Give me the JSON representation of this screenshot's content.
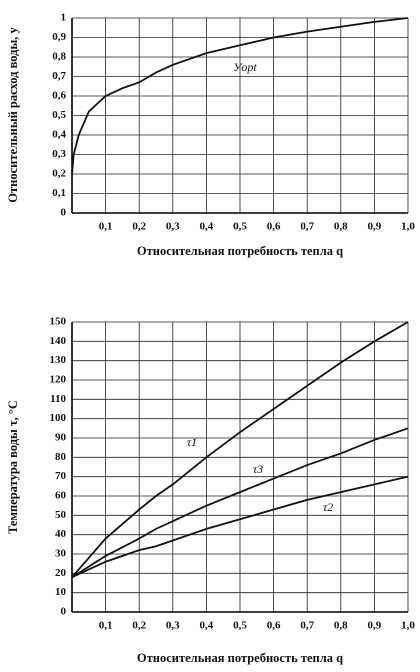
{
  "chart_data": [
    {
      "type": "line",
      "x_label": "Относительная потребность тепла q",
      "y_label": "Относительный расход воды, у",
      "x": [
        0,
        0.005,
        0.02,
        0.05,
        0.1,
        0.15,
        0.2,
        0.25,
        0.3,
        0.4,
        0.5,
        0.6,
        0.7,
        0.8,
        0.9,
        1.0
      ],
      "series": [
        {
          "name": "Уopt",
          "color": "#111111",
          "values": [
            0.2,
            0.3,
            0.4,
            0.52,
            0.6,
            0.64,
            0.67,
            0.72,
            0.76,
            0.82,
            0.86,
            0.9,
            0.93,
            0.955,
            0.98,
            1.0
          ]
        }
      ],
      "xlim": [
        0,
        1
      ],
      "ylim": [
        0,
        1
      ],
      "xticks": [
        {
          "value": 0.1,
          "label": "0,1"
        },
        {
          "value": 0.2,
          "label": "0,2"
        },
        {
          "value": 0.3,
          "label": "0,3"
        },
        {
          "value": 0.4,
          "label": "0,4"
        },
        {
          "value": 0.5,
          "label": "0,5"
        },
        {
          "value": 0.6,
          "label": "0,6"
        },
        {
          "value": 0.7,
          "label": "0,7"
        },
        {
          "value": 0.8,
          "label": "0,8"
        },
        {
          "value": 0.9,
          "label": "0,9"
        },
        {
          "value": 1.0,
          "label": "1,0"
        }
      ],
      "yticks": [
        0,
        {
          "value": 0.1,
          "label": "0,1"
        },
        {
          "value": 0.2,
          "label": "0,2"
        },
        {
          "value": 0.3,
          "label": "0,3"
        },
        {
          "value": 0.4,
          "label": "0,4"
        },
        {
          "value": 0.5,
          "label": "0,5"
        },
        {
          "value": 0.6,
          "label": "0,6"
        },
        {
          "value": 0.7,
          "label": "0,7"
        },
        {
          "value": 0.8,
          "label": "0,8"
        },
        {
          "value": 0.9,
          "label": "0,9"
        },
        1
      ],
      "grid": true
    },
    {
      "type": "line",
      "x_label": "Относительная потребность тепла q",
      "y_label": "Температура воды τ, °C",
      "x": [
        0,
        0.1,
        0.2,
        0.25,
        0.3,
        0.4,
        0.5,
        0.6,
        0.7,
        0.8,
        0.9,
        1.0
      ],
      "series": [
        {
          "name": "τ1",
          "color": "#111111",
          "values": [
            18,
            38,
            53,
            60,
            66,
            80,
            93,
            105,
            117,
            129,
            140,
            150
          ]
        },
        {
          "name": "τ3",
          "color": "#111111",
          "values": [
            18,
            29,
            38,
            43,
            47,
            55,
            62,
            69,
            76,
            82,
            89,
            95
          ]
        },
        {
          "name": "τ2",
          "color": "#111111",
          "values": [
            18,
            26,
            32,
            34,
            37,
            43,
            48,
            53,
            58,
            62,
            66,
            70
          ]
        }
      ],
      "xlim": [
        0,
        1
      ],
      "ylim": [
        0,
        150
      ],
      "xticks": [
        {
          "value": 0.1,
          "label": "0,1"
        },
        {
          "value": 0.2,
          "label": "0,2"
        },
        {
          "value": 0.3,
          "label": "0,3"
        },
        {
          "value": 0.4,
          "label": "0,4"
        },
        {
          "value": 0.5,
          "label": "0,5"
        },
        {
          "value": 0.6,
          "label": "0,6"
        },
        {
          "value": 0.7,
          "label": "0,7"
        },
        {
          "value": 0.8,
          "label": "0,8"
        },
        {
          "value": 0.9,
          "label": "0,9"
        },
        {
          "value": 1.0,
          "label": "1,0"
        }
      ],
      "yticks": [
        0,
        10,
        20,
        30,
        40,
        50,
        60,
        70,
        80,
        90,
        100,
        110,
        120,
        130,
        140,
        150
      ],
      "grid": true
    }
  ]
}
